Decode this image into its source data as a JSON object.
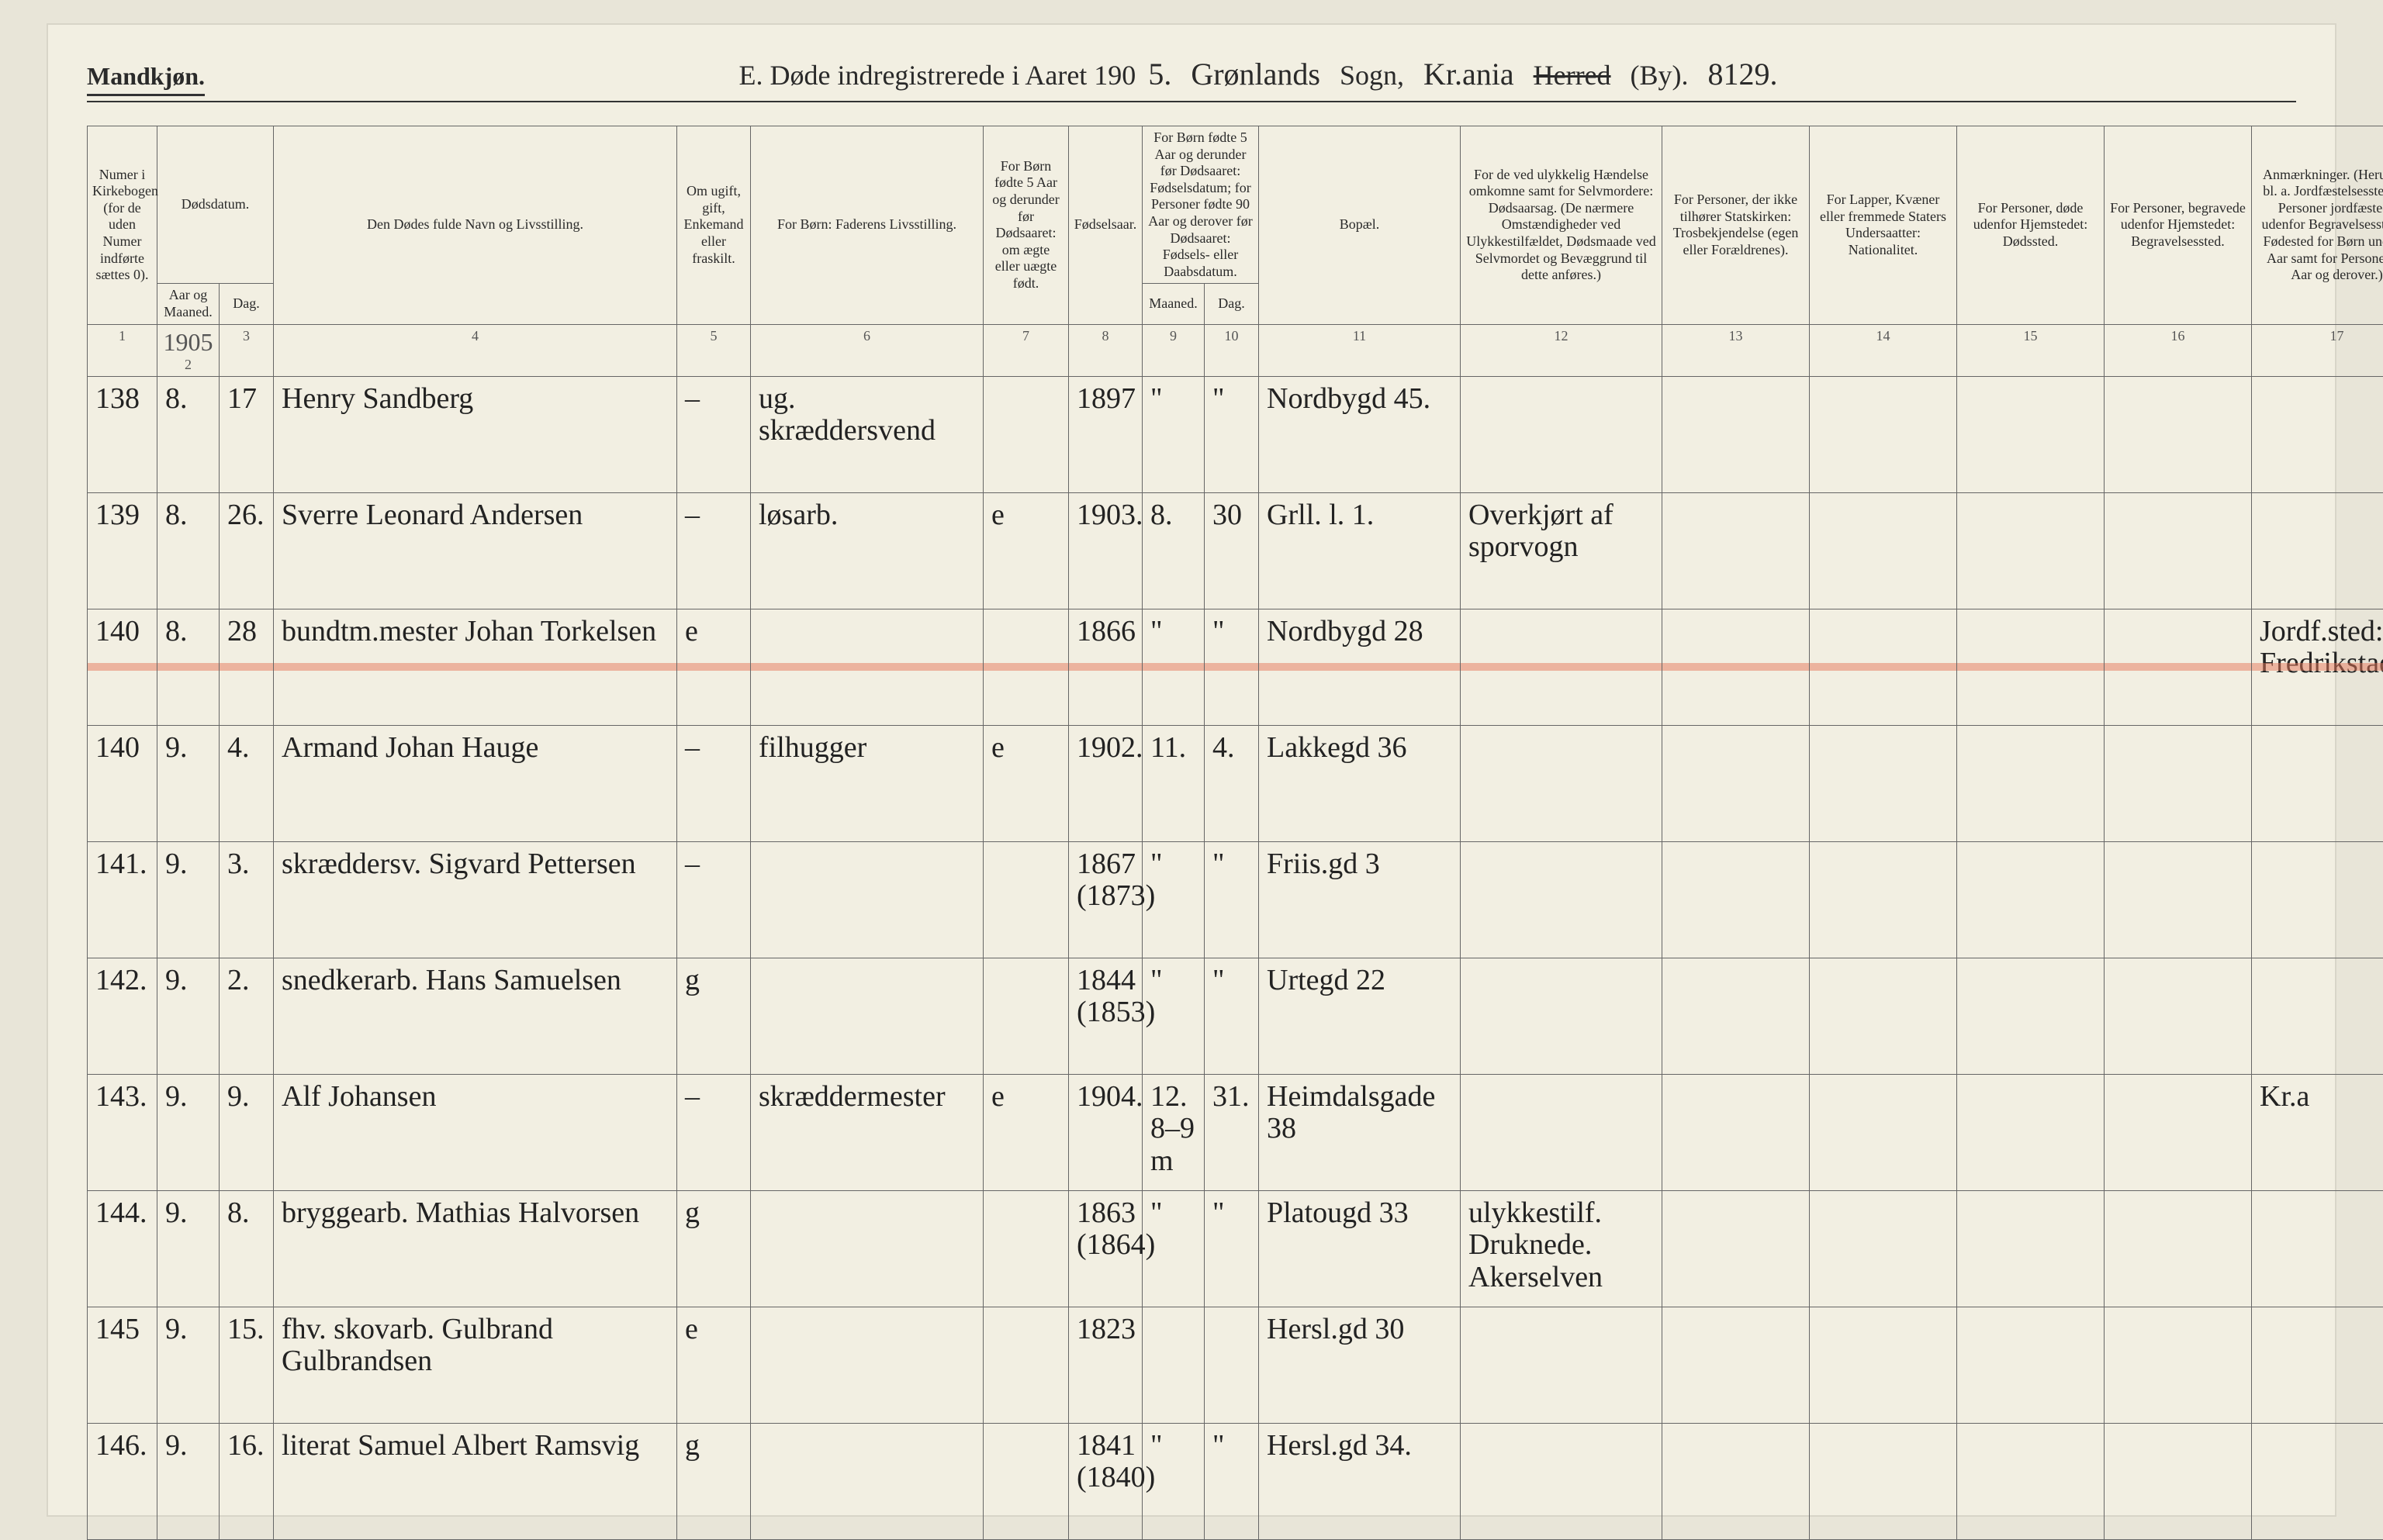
{
  "header": {
    "left": "Mandkjøn.",
    "title_prefix": "E. Døde indregistrerede i Aaret 190",
    "title_year_suffix": "5.",
    "parish_hand": "Grønlands",
    "sogn_label": "Sogn,",
    "district_hand": "Kr.ania",
    "herred_label": "Herred",
    "by_label": "(By).",
    "page_no": "8129."
  },
  "column_headers": {
    "c1": "Numer i Kirkebogen (for de uden Numer indførte sættes 0).",
    "c2": "Dødsdatum.",
    "c2a": "Aar og Maaned.",
    "c2b": "Dag.",
    "c3": "Den Dødes fulde Navn og Livsstilling.",
    "c4": "Om ugift, gift, Enkemand eller fraskilt.",
    "c5": "For Børn: Faderens Livsstilling.",
    "c6": "For Børn fødte 5 Aar og derunder før Dødsaaret: om ægte eller uægte født.",
    "c7": "Fødselsaar.",
    "c8": "For Børn fødte 5 Aar og derunder før Dødsaaret: Fødselsdatum; for Personer fødte 90 Aar og derover før Dødsaaret: Fødsels- eller Daabsdatum.",
    "c8a": "Maaned.",
    "c8b": "Dag.",
    "c9": "Bopæl.",
    "c10": "For de ved ulykkelig Hændelse omkomne samt for Selvmordere: Dødsaarsag. (De nærmere Omstændigheder ved Ulykkestilfældet, Dødsmaade ved Selvmordet og Bevæggrund til dette anføres.)",
    "c11": "For Personer, der ikke tilhører Statskirken: Trosbekjendelse (egen eller Forældrenes).",
    "c12": "For Lapper, Kvæner eller fremmede Staters Undersaatter: Nationalitet.",
    "c13": "For Personer, døde udenfor Hjemstedet: Dødssted.",
    "c14": "For Personer, begravede udenfor Hjemstedet: Begravelsessted.",
    "c15": "Anmærkninger. (Herunder bl. a. Jordfæstelsessted for Personer jordfæstede udenfor Begravelsesstedet, Fødested for Børn under 1 Aar samt for Personer 90 Aar og derover.)"
  },
  "col_nums": [
    "1",
    "2",
    "3",
    "4",
    "5",
    "6",
    "7",
    "8",
    "9",
    "10",
    "11",
    "12",
    "13",
    "14",
    "15",
    "16",
    "17"
  ],
  "year_note": "1905",
  "rows": [
    {
      "num": "138",
      "mon": "8.",
      "day": "17",
      "name": "Henry Sandberg",
      "status": "–",
      "father": "ug. skræddersvend",
      "legit": "",
      "byear": "1897",
      "bmon": "\"",
      "bday": "\"",
      "residence": "Nordbygd 45.",
      "cause": "",
      "c11": "",
      "c12": "",
      "c13": "",
      "c14": "",
      "c15": "",
      "strike": false
    },
    {
      "num": "139",
      "mon": "8.",
      "day": "26.",
      "name": "Sverre Leonard Andersen",
      "status": "–",
      "father": "løsarb.",
      "legit": "e",
      "byear": "1903.",
      "bmon": "8.",
      "bday": "30",
      "residence": "Grll. l. 1.",
      "cause": "Overkjørt af sporvogn",
      "c11": "",
      "c12": "",
      "c13": "",
      "c14": "",
      "c15": "",
      "strike": false
    },
    {
      "num": "140",
      "mon": "8.",
      "day": "28",
      "name": "bundtm.mester Johan Torkelsen",
      "status": "e",
      "father": "",
      "legit": "",
      "byear": "1866",
      "bmon": "\"",
      "bday": "\"",
      "residence": "Nordbygd 28",
      "cause": "",
      "c11": "",
      "c12": "",
      "c13": "",
      "c14": "",
      "c15": "Jordf.sted: Fredrikstad",
      "strike": true
    },
    {
      "num": "140",
      "mon": "9.",
      "day": "4.",
      "name": "Armand Johan Hauge",
      "status": "–",
      "father": "filhugger",
      "legit": "e",
      "byear": "1902.",
      "bmon": "11.",
      "bday": "4.",
      "residence": "Lakkegd 36",
      "cause": "",
      "c11": "",
      "c12": "",
      "c13": "",
      "c14": "",
      "c15": "",
      "strike": false
    },
    {
      "num": "141.",
      "mon": "9.",
      "day": "3.",
      "name": "skræddersv. Sigvard Pettersen",
      "status": "–",
      "father": "",
      "legit": "",
      "byear": "1867 (1873)",
      "bmon": "\"",
      "bday": "\"",
      "residence": "Friis.gd 3",
      "cause": "",
      "c11": "",
      "c12": "",
      "c13": "",
      "c14": "",
      "c15": "",
      "strike": false
    },
    {
      "num": "142.",
      "mon": "9.",
      "day": "2.",
      "name": "snedkerarb. Hans Samuelsen",
      "status": "g",
      "father": "",
      "legit": "",
      "byear": "1844 (1853)",
      "bmon": "\"",
      "bday": "\"",
      "residence": "Urtegd 22",
      "cause": "",
      "c11": "",
      "c12": "",
      "c13": "",
      "c14": "",
      "c15": "",
      "strike": false
    },
    {
      "num": "143.",
      "mon": "9.",
      "day": "9.",
      "name": "Alf Johansen",
      "status": "–",
      "father": "skræddermester",
      "legit": "e",
      "byear": "1904.",
      "bmon": "12. 8–9 m",
      "bday": "31.",
      "residence": "Heimdalsgade 38",
      "cause": "",
      "c11": "",
      "c12": "",
      "c13": "",
      "c14": "",
      "c15": "Kr.a",
      "strike": false
    },
    {
      "num": "144.",
      "mon": "9.",
      "day": "8.",
      "name": "bryggearb. Mathias Halvorsen",
      "status": "g",
      "father": "",
      "legit": "",
      "byear": "1863 (1864)",
      "bmon": "\"",
      "bday": "\"",
      "residence": "Platougd 33",
      "cause": "ulykkestilf. Druknede. Akerselven",
      "c11": "",
      "c12": "",
      "c13": "",
      "c14": "",
      "c15": "",
      "strike": false
    },
    {
      "num": "145",
      "mon": "9.",
      "day": "15.",
      "name": "fhv. skovarb. Gulbrand Gulbrandsen",
      "status": "e",
      "father": "",
      "legit": "",
      "byear": "1823",
      "bmon": "",
      "bday": "",
      "residence": "Hersl.gd 30",
      "cause": "",
      "c11": "",
      "c12": "",
      "c13": "",
      "c14": "",
      "c15": "",
      "strike": false
    },
    {
      "num": "146.",
      "mon": "9.",
      "day": "16.",
      "name": "literat Samuel Albert Ramsvig",
      "status": "g",
      "father": "",
      "legit": "",
      "byear": "1841 (1840)",
      "bmon": "\"",
      "bday": "\"",
      "residence": "Hersl.gd 34.",
      "cause": "",
      "c11": "",
      "c12": "",
      "c13": "",
      "c14": "",
      "c15": "",
      "strike": false
    }
  ]
}
